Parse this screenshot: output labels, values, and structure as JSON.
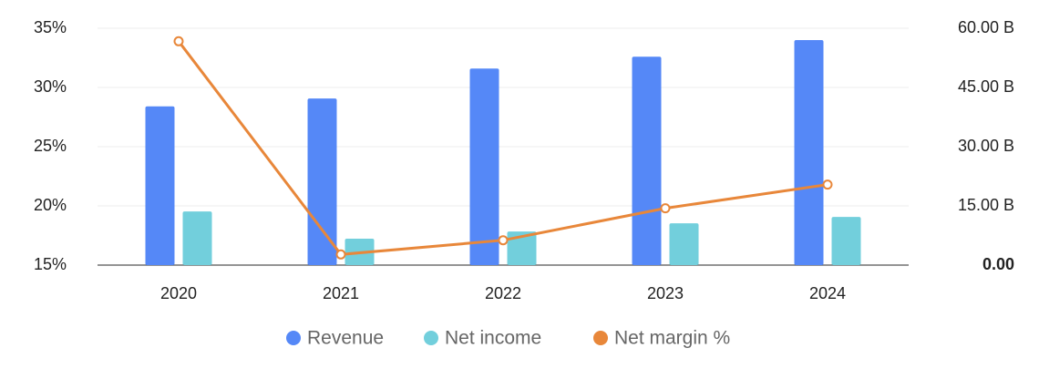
{
  "chart_data": {
    "type": "bar-line",
    "categories": [
      "2020",
      "2021",
      "2022",
      "2023",
      "2024"
    ],
    "series": [
      {
        "name": "Revenue",
        "color": "#5588f7",
        "type": "bar",
        "axis": "y2",
        "values": [
          40.2,
          42.2,
          49.8,
          52.8,
          57.0
        ]
      },
      {
        "name": "Net income",
        "color": "#72cfdc",
        "type": "bar",
        "axis": "y2",
        "values": [
          13.6,
          6.7,
          8.5,
          10.6,
          12.2
        ]
      },
      {
        "name": "Net margin %",
        "color": "#e8873a",
        "type": "line",
        "axis": "y",
        "values": [
          33.9,
          15.9,
          17.1,
          19.8,
          21.8
        ]
      }
    ],
    "ylim": [
      15,
      35
    ],
    "yticks": [
      {
        "value": 15,
        "label": "15%"
      },
      {
        "value": 20,
        "label": "20%"
      },
      {
        "value": 25,
        "label": "25%"
      },
      {
        "value": 30,
        "label": "30%"
      },
      {
        "value": 35,
        "label": "35%"
      }
    ],
    "y2lim": [
      0,
      60
    ],
    "y2ticks": [
      {
        "value": 0,
        "label": "0.00"
      },
      {
        "value": 15,
        "label": "15.00 B"
      },
      {
        "value": 30,
        "label": "30.00 B"
      },
      {
        "value": 45,
        "label": "45.00 B"
      },
      {
        "value": 60,
        "label": "60.00 B"
      }
    ],
    "grid": true
  }
}
